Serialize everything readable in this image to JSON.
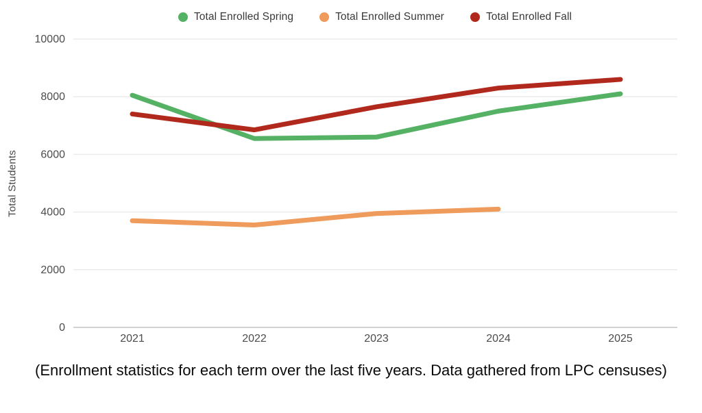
{
  "legend": {
    "items": [
      {
        "label": "Total Enrolled Spring",
        "color": "#55b164"
      },
      {
        "label": "Total Enrolled Summer",
        "color": "#ee9b5c"
      },
      {
        "label": "Total Enrolled Fall",
        "color": "#b1281d"
      }
    ]
  },
  "chart_data": {
    "type": "line",
    "title": "",
    "xlabel": "",
    "ylabel": "Total Students",
    "categories": [
      "2021",
      "2022",
      "2023",
      "2024",
      "2025"
    ],
    "series": [
      {
        "name": "Total Enrolled Spring",
        "color": "#55b164",
        "values": [
          8050,
          6550,
          6600,
          7500,
          8100
        ]
      },
      {
        "name": "Total Enrolled Summer",
        "color": "#ee9b5c",
        "values": [
          3700,
          3550,
          3950,
          4100,
          null
        ]
      },
      {
        "name": "Total Enrolled Fall",
        "color": "#b1281d",
        "values": [
          7400,
          6850,
          7650,
          8300,
          8600
        ]
      }
    ],
    "ylim": [
      0,
      10000
    ],
    "yticks": [
      10000,
      8000,
      6000,
      4000,
      2000,
      0
    ],
    "grid": true,
    "legend_position": "top"
  },
  "caption": "(Enrollment statistics for each term over the last five years. Data gathered from LPC censuses)"
}
